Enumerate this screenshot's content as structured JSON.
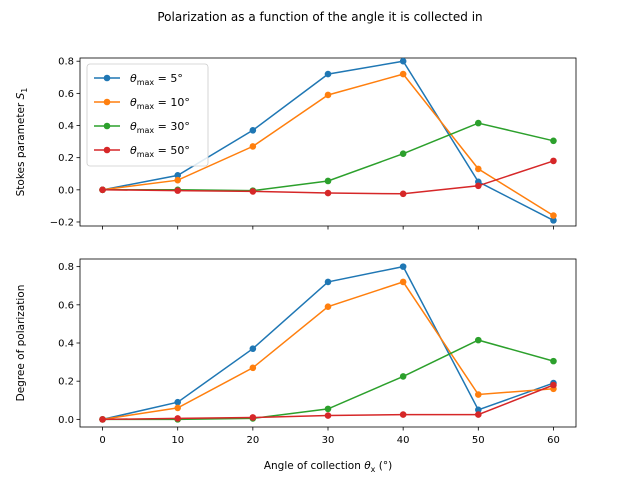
{
  "suptitle": "Polarization as a function of the angle it is collected in",
  "legend": {
    "placement": "top-left",
    "entries": [
      {
        "prefix": "θ",
        "sub": "max",
        "suffix": " = 5°"
      },
      {
        "prefix": "θ",
        "sub": "max",
        "suffix": " = 10°"
      },
      {
        "prefix": "θ",
        "sub": "max",
        "suffix": " = 30°"
      },
      {
        "prefix": "θ",
        "sub": "max",
        "suffix": " = 50°"
      }
    ]
  },
  "colors": [
    "#1f77b4",
    "#ff7f0e",
    "#2ca02c",
    "#d62728"
  ],
  "chart_data": [
    {
      "type": "line",
      "title": "",
      "ylabel": {
        "main": "Stokes parameter ",
        "sym": "S",
        "sub": "1"
      },
      "xlabel": "",
      "x": [
        0,
        10,
        20,
        30,
        40,
        50,
        60
      ],
      "xlim": [
        -3,
        63
      ],
      "ylim": [
        -0.225,
        0.82
      ],
      "yticks": [
        -0.2,
        0.0,
        0.2,
        0.4,
        0.6,
        0.8
      ],
      "ytick_labels": [
        "−0.2",
        "0.0",
        "0.2",
        "0.4",
        "0.6",
        "0.8"
      ],
      "xticks": [
        0,
        10,
        20,
        30,
        40,
        50,
        60
      ],
      "xtick_labels": [
        "",
        "",
        "",
        "",
        "",
        "",
        ""
      ],
      "grid": false,
      "series": [
        {
          "name": "θmax = 5°",
          "values": [
            0.0,
            0.09,
            0.37,
            0.72,
            0.8,
            0.05,
            -0.19
          ]
        },
        {
          "name": "θmax = 10°",
          "values": [
            0.0,
            0.06,
            0.27,
            0.59,
            0.72,
            0.13,
            -0.16
          ]
        },
        {
          "name": "θmax = 30°",
          "values": [
            0.0,
            0.0,
            -0.005,
            0.055,
            0.225,
            0.415,
            0.305
          ]
        },
        {
          "name": "θmax = 50°",
          "values": [
            0.0,
            -0.005,
            -0.01,
            -0.02,
            -0.025,
            0.025,
            0.18
          ]
        }
      ]
    },
    {
      "type": "line",
      "title": "",
      "ylabel": {
        "main": "Degree of polarization",
        "sym": "",
        "sub": ""
      },
      "xlabel": {
        "main": "Angle of collection ",
        "sym": "θ",
        "sub": "x",
        "suffix": " (°)"
      },
      "x": [
        0,
        10,
        20,
        30,
        40,
        50,
        60
      ],
      "xlim": [
        -3,
        63
      ],
      "ylim": [
        -0.04,
        0.84
      ],
      "yticks": [
        0.0,
        0.2,
        0.4,
        0.6,
        0.8
      ],
      "ytick_labels": [
        "0.0",
        "0.2",
        "0.4",
        "0.6",
        "0.8"
      ],
      "xticks": [
        0,
        10,
        20,
        30,
        40,
        50,
        60
      ],
      "xtick_labels": [
        "0",
        "10",
        "20",
        "30",
        "40",
        "50",
        "60"
      ],
      "grid": false,
      "series": [
        {
          "name": "θmax = 5°",
          "values": [
            0.0,
            0.09,
            0.37,
            0.72,
            0.8,
            0.05,
            0.19
          ]
        },
        {
          "name": "θmax = 10°",
          "values": [
            0.0,
            0.06,
            0.27,
            0.59,
            0.72,
            0.13,
            0.16
          ]
        },
        {
          "name": "θmax = 30°",
          "values": [
            0.0,
            0.0,
            0.005,
            0.055,
            0.225,
            0.415,
            0.305
          ]
        },
        {
          "name": "θmax = 50°",
          "values": [
            0.0,
            0.005,
            0.01,
            0.02,
            0.025,
            0.025,
            0.18
          ]
        }
      ]
    }
  ]
}
